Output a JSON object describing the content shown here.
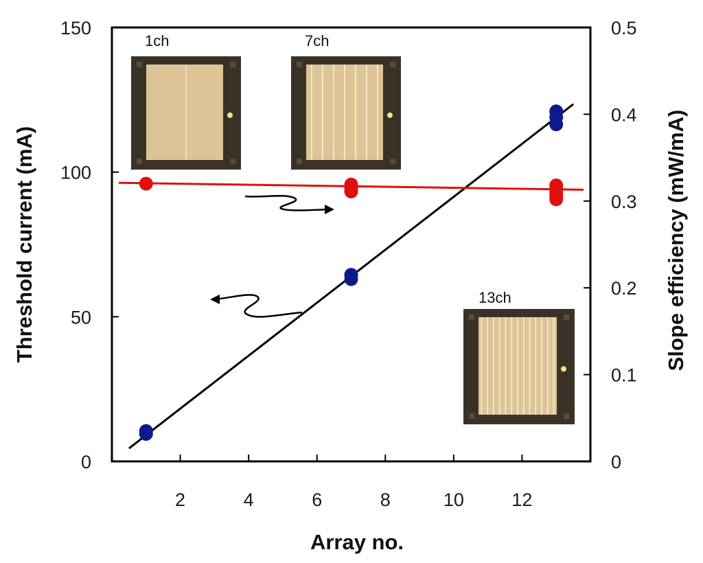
{
  "chart_data": {
    "type": "scatter",
    "xlabel": "Array no.",
    "ylabel_left": "Threshold current (mA)",
    "ylabel_right": "Slope efficiency (mW/mA)",
    "xlim": [
      0,
      14
    ],
    "ylim_left": [
      0,
      150
    ],
    "ylim_right": [
      0,
      0.5
    ],
    "x_ticks": [
      2,
      4,
      6,
      8,
      10,
      12
    ],
    "y_ticks_left": [
      0,
      50,
      100,
      150
    ],
    "y_ticks_right": [
      0,
      0.1,
      0.2,
      0.3,
      0.4,
      0.5
    ],
    "series": [
      {
        "axis": "left",
        "color": "#0d1a8c",
        "points": [
          {
            "x": 1,
            "y": 9.5
          },
          {
            "x": 1,
            "y": 10.5
          },
          {
            "x": 7,
            "y": 63
          },
          {
            "x": 7,
            "y": 64.5
          },
          {
            "x": 13,
            "y": 116.5
          },
          {
            "x": 13,
            "y": 119
          },
          {
            "x": 13,
            "y": 121
          }
        ],
        "fit": {
          "x": [
            0.5,
            13.5
          ],
          "y": [
            4.5,
            123.5
          ],
          "color": "#000000"
        }
      },
      {
        "axis": "right",
        "color": "#e01010",
        "points": [
          {
            "x": 1,
            "y": 0.32
          },
          {
            "x": 7,
            "y": 0.311
          },
          {
            "x": 7,
            "y": 0.315
          },
          {
            "x": 7,
            "y": 0.319
          },
          {
            "x": 13,
            "y": 0.302
          },
          {
            "x": 13,
            "y": 0.306
          },
          {
            "x": 13,
            "y": 0.31
          },
          {
            "x": 13,
            "y": 0.314
          },
          {
            "x": 13,
            "y": 0.318
          }
        ],
        "fit": {
          "x": [
            0.2,
            13.8
          ],
          "y": [
            0.321,
            0.313
          ],
          "color": "#e01010"
        }
      }
    ],
    "insets": [
      {
        "label": "1ch",
        "channels": 1
      },
      {
        "label": "7ch",
        "channels": 7
      },
      {
        "label": "13ch",
        "channels": 13
      }
    ]
  }
}
